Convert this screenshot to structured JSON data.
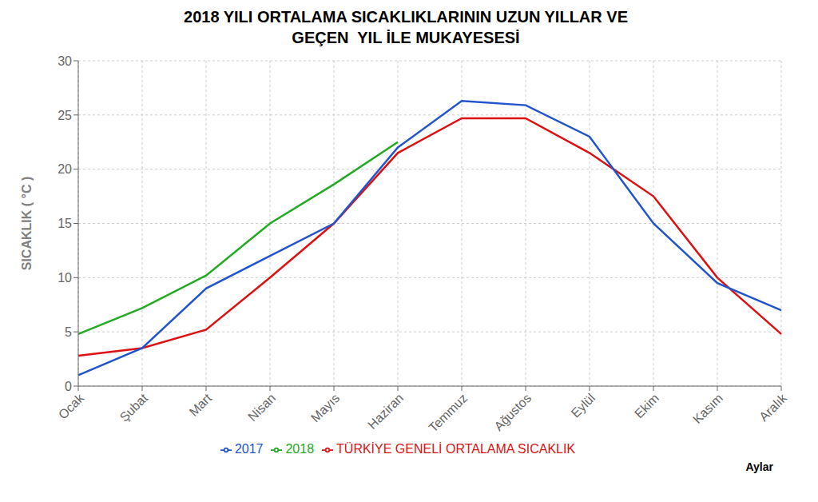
{
  "chart_data": {
    "type": "line",
    "title": "2018 YILI ORTALAMA SICAKLIKLARININ UZUN YILLAR VE\nGEÇEN  YIL İLE MUKAYESESİ",
    "categories": [
      "Ocak",
      "Şubat",
      "Mart",
      "Nisan",
      "Mayıs",
      "Haziran",
      "Temmuz",
      "Ağustos",
      "Eylül",
      "Ekim",
      "Kasım",
      "Aralık"
    ],
    "series": [
      {
        "name": "TÜRKİYE GENELİ ORTALAMA SICAKLIK",
        "color": "#dd1111",
        "values": [
          2.8,
          3.5,
          5.2,
          10.0,
          15.0,
          21.5,
          24.7,
          24.7,
          21.5,
          17.5,
          10.0,
          4.8
        ]
      },
      {
        "name": "2017",
        "color": "#2255cc",
        "values": [
          1.0,
          3.5,
          9.0,
          12.0,
          15.0,
          22.0,
          26.3,
          25.9,
          23.0,
          15.0,
          9.5,
          7.0
        ]
      },
      {
        "name": "2018",
        "color": "#22aa22",
        "values": [
          4.8,
          7.2,
          10.2,
          15.0,
          18.6,
          22.5,
          null,
          null,
          null,
          null,
          null,
          null
        ]
      }
    ],
    "ylabel": "SICAKLIK ( °C )",
    "xlabel": "Aylar",
    "ylim": [
      0,
      30
    ],
    "yticks": [
      0,
      5,
      10,
      15,
      20,
      25,
      30
    ],
    "grid": true,
    "legend": "bottom"
  }
}
